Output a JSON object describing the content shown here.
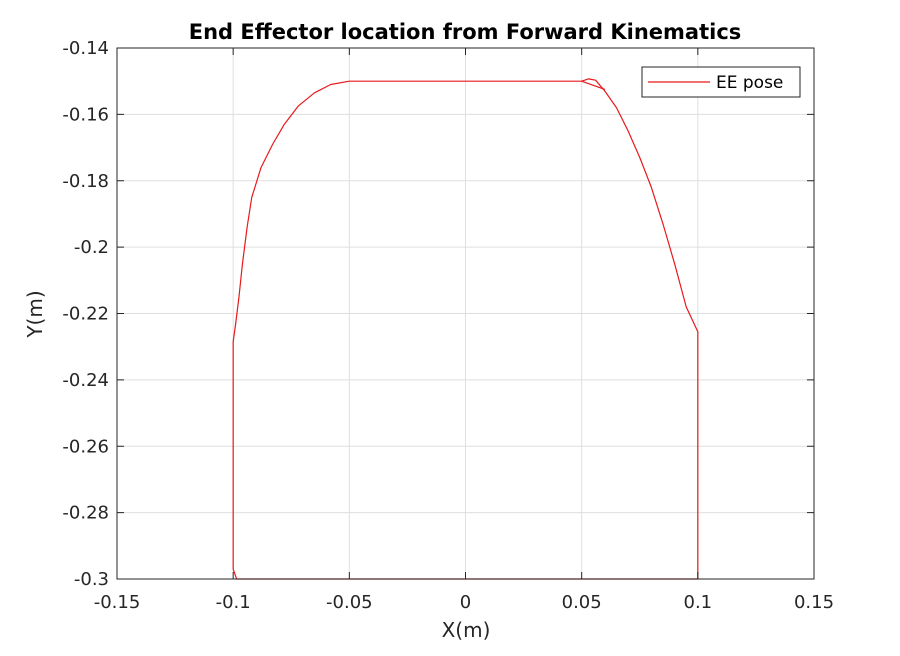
{
  "chart_data": {
    "type": "line",
    "title": "End Effector location from Forward Kinematics",
    "xlabel": "X(m)",
    "ylabel": "Y(m)",
    "xlim": [
      -0.15,
      0.15
    ],
    "ylim": [
      -0.3,
      -0.14
    ],
    "xticks": [
      -0.15,
      -0.1,
      -0.05,
      0,
      0.05,
      0.1,
      0.15
    ],
    "xtick_labels": [
      "-0.15",
      "-0.1",
      "-0.05",
      "0",
      "0.05",
      "0.1",
      "0.15"
    ],
    "yticks": [
      -0.3,
      -0.28,
      -0.26,
      -0.24,
      -0.22,
      -0.2,
      -0.18,
      -0.16,
      -0.14
    ],
    "ytick_labels": [
      "-0.3",
      "-0.28",
      "-0.26",
      "-0.24",
      "-0.22",
      "-0.2",
      "-0.18",
      "-0.16",
      "-0.14"
    ],
    "grid": true,
    "legend_position": "top-right",
    "series": [
      {
        "name": "EE pose",
        "color": "#e8191b",
        "points": [
          [
            -0.05,
            -0.15
          ],
          [
            0.05,
            -0.15
          ],
          [
            0.053,
            -0.1493
          ],
          [
            0.056,
            -0.1497
          ],
          [
            0.06,
            -0.153
          ],
          [
            0.065,
            -0.158
          ],
          [
            0.07,
            -0.165
          ],
          [
            0.075,
            -0.173
          ],
          [
            0.08,
            -0.182
          ],
          [
            0.085,
            -0.193
          ],
          [
            0.09,
            -0.205
          ],
          [
            0.095,
            -0.218
          ],
          [
            0.1,
            -0.2255
          ],
          [
            0.1,
            -0.3
          ],
          [
            -0.0985,
            -0.3
          ],
          [
            -0.1,
            -0.297
          ],
          [
            -0.1,
            -0.2285
          ],
          [
            -0.099,
            -0.2235
          ],
          [
            -0.0975,
            -0.215
          ],
          [
            -0.096,
            -0.205
          ],
          [
            -0.094,
            -0.194
          ],
          [
            -0.092,
            -0.185
          ],
          [
            -0.088,
            -0.176
          ],
          [
            -0.083,
            -0.169
          ],
          [
            -0.078,
            -0.163
          ],
          [
            -0.072,
            -0.1575
          ],
          [
            -0.065,
            -0.1535
          ],
          [
            -0.058,
            -0.151
          ],
          [
            -0.05,
            -0.15
          ]
        ]
      },
      {
        "name": "",
        "color": "#e8191b",
        "points": [
          [
            0.05,
            -0.15
          ],
          [
            0.06,
            -0.1525
          ]
        ]
      }
    ]
  }
}
